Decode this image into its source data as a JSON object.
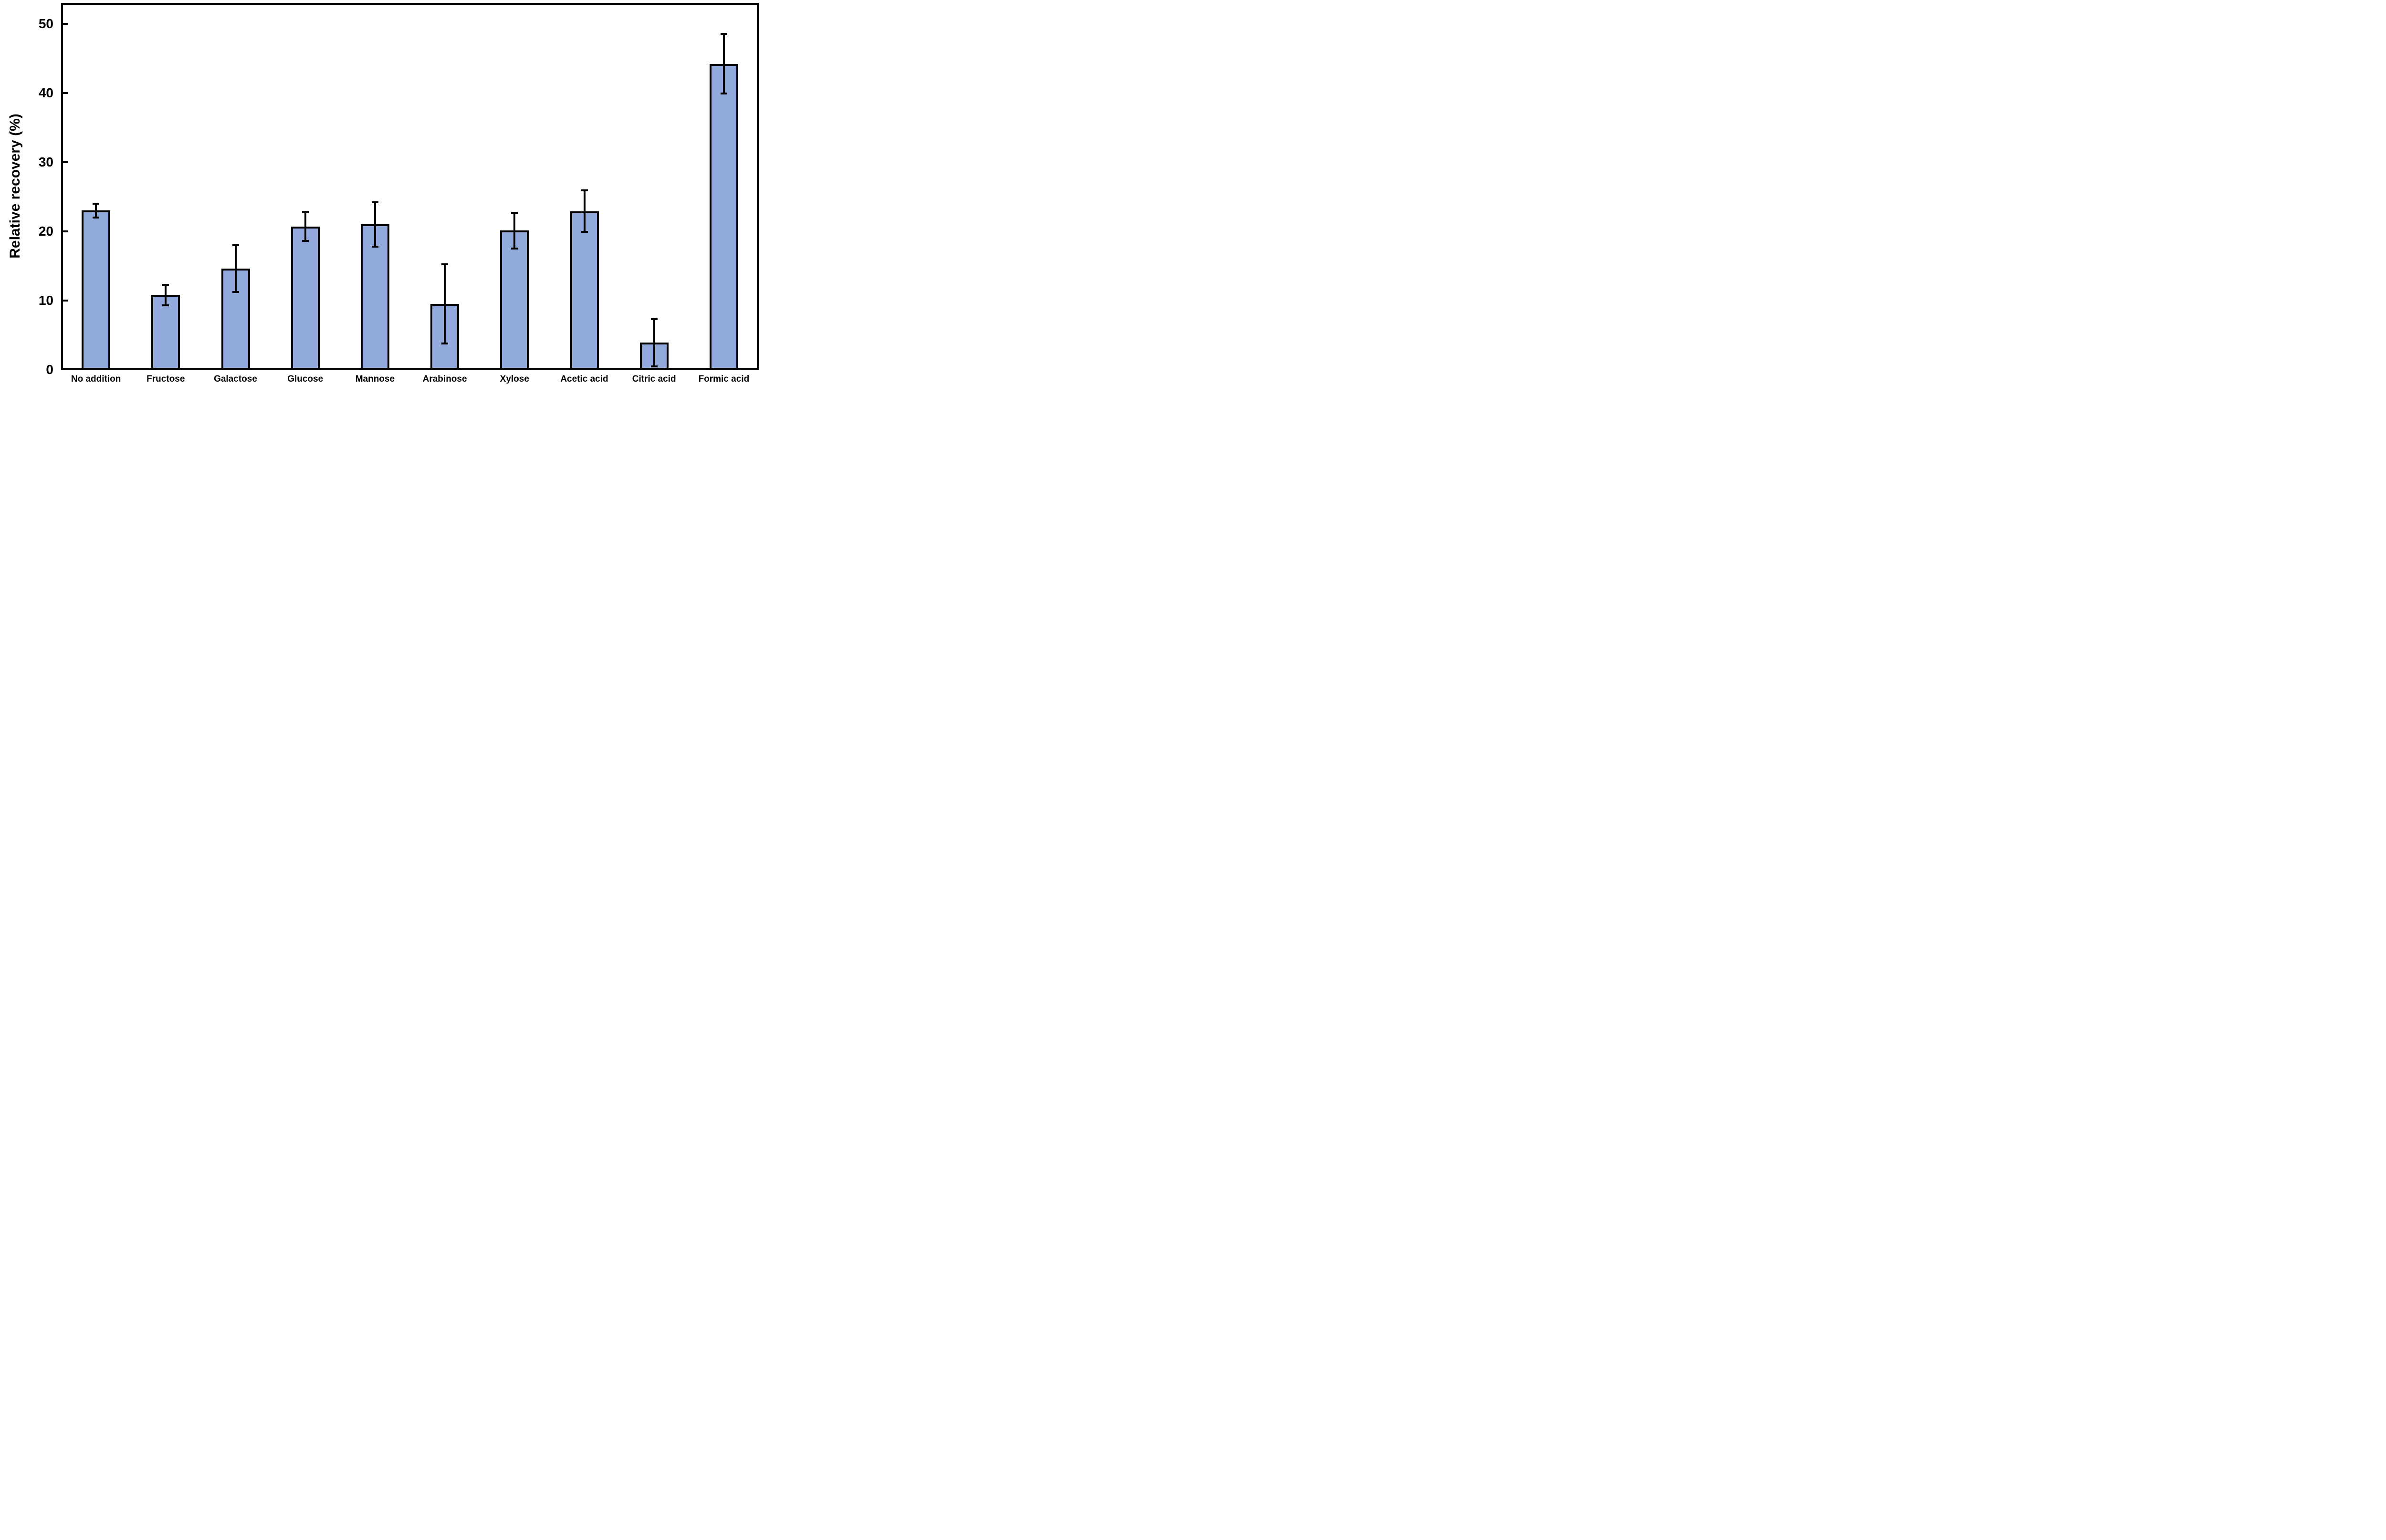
{
  "chart_data": {
    "type": "bar",
    "title": "",
    "xlabel": "",
    "ylabel": "Relative recovery (%)",
    "ylim": [
      0,
      53
    ],
    "yticks": [
      0,
      10,
      20,
      30,
      40,
      50
    ],
    "grid": false,
    "legend": false,
    "bar_fill_color": "#92A9DC",
    "bar_border_color": "#000000",
    "axis_color": "#000000",
    "background_color": "#ffffff",
    "categories": [
      "No addition",
      "Fructose",
      "Galactose",
      "Glucose",
      "Mannose",
      "Arabinose",
      "Xylose",
      "Acetic acid",
      "Citric acid",
      "Formic acid"
    ],
    "values": [
      23.0,
      10.8,
      14.6,
      20.7,
      21.0,
      9.5,
      20.1,
      22.9,
      3.9,
      44.2
    ],
    "errors": [
      1.0,
      1.5,
      3.4,
      2.1,
      3.2,
      5.7,
      2.6,
      3.0,
      3.4,
      4.3
    ]
  }
}
